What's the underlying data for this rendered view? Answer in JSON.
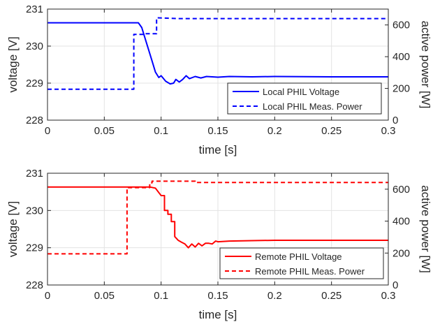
{
  "chart_data": [
    {
      "type": "line",
      "xlabel": "time [s]",
      "ylabel_left": "voltage [V]",
      "ylabel_right": "active power [W]",
      "xlim": [
        0,
        0.3
      ],
      "ylim_left": [
        228,
        231
      ],
      "ylim_right": [
        0,
        700
      ],
      "xticks": [
        0,
        0.05,
        0.1,
        0.15,
        0.2,
        0.25,
        0.3
      ],
      "xtick_labels": [
        "0",
        "0.05",
        "0.1",
        "0.15",
        "0.2",
        "0.25",
        "0.3"
      ],
      "yticks_left": [
        228,
        229,
        230,
        231
      ],
      "ytick_labels_left": [
        "228",
        "229",
        "230",
        "231"
      ],
      "yticks_right": [
        0,
        200,
        400,
        600
      ],
      "ytick_labels_right": [
        "0",
        "200",
        "400",
        "600"
      ],
      "grid": true,
      "legend_position": "bottom-right",
      "series": [
        {
          "name": "Local PHIL Voltage",
          "axis": "left",
          "style": "solid",
          "color": "#0000ff",
          "x": [
            0,
            0.08,
            0.083,
            0.086,
            0.089,
            0.092,
            0.095,
            0.098,
            0.1,
            0.104,
            0.108,
            0.111,
            0.113,
            0.116,
            0.119,
            0.122,
            0.125,
            0.13,
            0.135,
            0.14,
            0.15,
            0.16,
            0.18,
            0.2,
            0.25,
            0.3
          ],
          "y": [
            230.63,
            230.63,
            230.5,
            230.2,
            229.9,
            229.6,
            229.3,
            229.15,
            229.2,
            229.05,
            228.98,
            229.0,
            229.1,
            229.03,
            229.1,
            229.2,
            229.12,
            229.18,
            229.14,
            229.18,
            229.16,
            229.18,
            229.17,
            229.18,
            229.17,
            229.17
          ]
        },
        {
          "name": "Local PHIL Meas. Power",
          "axis": "right",
          "style": "dashed",
          "color": "#0000ff",
          "x": [
            0,
            0.076,
            0.076,
            0.085,
            0.085,
            0.096,
            0.096,
            0.115,
            0.3
          ],
          "y": [
            195,
            195,
            540,
            540,
            545,
            545,
            645,
            640,
            640
          ]
        }
      ]
    },
    {
      "type": "line",
      "xlabel": "time [s]",
      "ylabel_left": "voltage [V]",
      "ylabel_right": "active power [W]",
      "xlim": [
        0,
        0.3
      ],
      "ylim_left": [
        228,
        231
      ],
      "ylim_right": [
        0,
        700
      ],
      "xticks": [
        0,
        0.05,
        0.1,
        0.15,
        0.2,
        0.25,
        0.3
      ],
      "xtick_labels": [
        "0",
        "0.05",
        "0.1",
        "0.15",
        "0.2",
        "0.25",
        "0.3"
      ],
      "yticks_left": [
        228,
        229,
        230,
        231
      ],
      "ytick_labels_left": [
        "228",
        "229",
        "230",
        "231"
      ],
      "yticks_right": [
        0,
        200,
        400,
        600
      ],
      "ytick_labels_right": [
        "0",
        "200",
        "400",
        "600"
      ],
      "grid": true,
      "legend_position": "bottom-right",
      "series": [
        {
          "name": "Remote PHIL Voltage",
          "axis": "left",
          "style": "solid",
          "color": "#ff0000",
          "x": [
            0,
            0.09,
            0.095,
            0.1,
            0.103,
            0.103,
            0.106,
            0.106,
            0.109,
            0.109,
            0.112,
            0.112,
            0.115,
            0.118,
            0.121,
            0.124,
            0.127,
            0.13,
            0.133,
            0.136,
            0.139,
            0.142,
            0.145,
            0.148,
            0.15,
            0.16,
            0.18,
            0.2,
            0.25,
            0.3
          ],
          "y": [
            230.63,
            230.63,
            230.6,
            230.4,
            230.4,
            230.0,
            230.0,
            229.9,
            229.9,
            229.7,
            229.7,
            229.3,
            229.2,
            229.15,
            229.1,
            229.0,
            229.1,
            229.02,
            229.12,
            229.05,
            229.12,
            229.12,
            229.1,
            229.18,
            229.16,
            229.18,
            229.19,
            229.2,
            229.2,
            229.2
          ]
        },
        {
          "name": "Remote PHIL Meas. Power",
          "axis": "right",
          "style": "dashed",
          "color": "#ff0000",
          "x": [
            0,
            0.07,
            0.07,
            0.09,
            0.09,
            0.092,
            0.092,
            0.13,
            0.13,
            0.3
          ],
          "y": [
            195,
            195,
            610,
            610,
            640,
            640,
            650,
            650,
            642,
            642
          ]
        }
      ]
    }
  ]
}
